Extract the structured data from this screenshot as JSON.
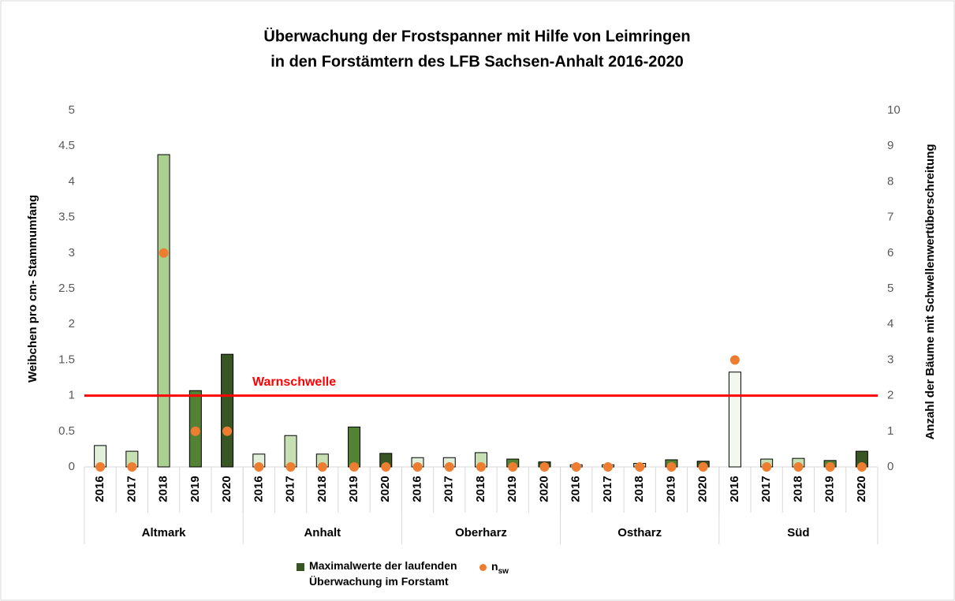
{
  "chart_data": {
    "type": "bar",
    "title": [
      "Überwachung der Frostspanner mit Hilfe  von Leimringen",
      "in den Forstämtern des LFB Sachsen-Anhalt 2016-2020"
    ],
    "y_label": "Weibchen pro cm- Stammumfang",
    "y2_label": "Anzahl der Bäume mit Schwellenwertüberschreitung",
    "groups": [
      "Altmark",
      "Anhalt",
      "Oberharz",
      "Ostharz",
      "Süd"
    ],
    "categories": [
      "2016",
      "2017",
      "2018",
      "2019",
      "2020",
      "2016",
      "2017",
      "2018",
      "2019",
      "2020",
      "2016",
      "2017",
      "2018",
      "2019",
      "2020",
      "2016",
      "2017",
      "2018",
      "2019",
      "2020",
      "2016",
      "2017",
      "2018",
      "2019",
      "2020"
    ],
    "series": [
      {
        "name": "Maximalwerte der laufenden Überwachung im Forstamt",
        "color": "#375623",
        "colors": [
          "#e2efda",
          "#c6e0b4",
          "#a9d08e",
          "#548235",
          "#375623",
          "#e2efda",
          "#c6e0b4",
          "#c6e0b4",
          "#548235",
          "#375623",
          "#e2efda",
          "#e2efda",
          "#c6e0b4",
          "#548235",
          "#375623",
          "#e2efda",
          "#e2efda",
          "#c6e0b4",
          "#548235",
          "#375623",
          "#f2f8ee",
          "#c6e0b4",
          "#c6e0b4",
          "#548235",
          "#375623"
        ],
        "values": [
          0.3,
          0.22,
          4.38,
          1.07,
          1.58,
          0.18,
          0.44,
          0.18,
          0.56,
          0.19,
          0.13,
          0.13,
          0.2,
          0.11,
          0.07,
          0.03,
          0.03,
          0.05,
          0.1,
          0.08,
          1.33,
          0.11,
          0.12,
          0.09,
          0.22
        ]
      },
      {
        "name": "n",
        "name_sub": "sw",
        "type": "scatter",
        "axis": "y2",
        "color": "#ed7d31",
        "values": [
          0,
          0,
          6,
          1,
          1,
          0,
          0,
          0,
          0,
          0,
          0,
          0,
          0,
          0,
          0,
          0,
          0,
          0,
          0,
          0,
          3,
          0,
          0,
          0,
          0
        ]
      }
    ],
    "ylim": [
      0,
      5
    ],
    "yticks": [
      0,
      0.5,
      1,
      1.5,
      2,
      2.5,
      3,
      3.5,
      4,
      4.5,
      5
    ],
    "y2lim": [
      0,
      10
    ],
    "y2ticks": [
      0,
      1,
      2,
      3,
      4,
      5,
      6,
      7,
      8,
      9,
      10
    ],
    "threshold": {
      "value": 1,
      "label": "Warnschwelle",
      "color": "#ff0000"
    },
    "grid": false
  }
}
